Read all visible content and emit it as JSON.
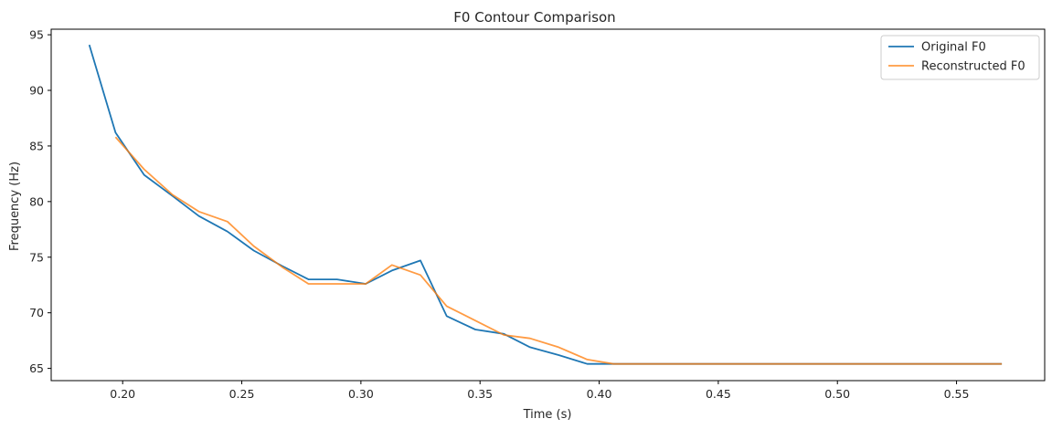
{
  "chart_data": {
    "type": "line",
    "title": "F0 Contour Comparison",
    "xlabel": "Time (s)",
    "ylabel": "Frequency (Hz)",
    "xlim": [
      0.17,
      0.587
    ],
    "ylim": [
      63.9,
      95.5
    ],
    "xticks": [
      0.2,
      0.25,
      0.3,
      0.35,
      0.4,
      0.45,
      0.5,
      0.55
    ],
    "xtick_labels": [
      "0.20",
      "0.25",
      "0.30",
      "0.35",
      "0.40",
      "0.45",
      "0.50",
      "0.55"
    ],
    "yticks": [
      65,
      70,
      75,
      80,
      85,
      90,
      95
    ],
    "ytick_labels": [
      "65",
      "70",
      "75",
      "80",
      "85",
      "90",
      "95"
    ],
    "grid": false,
    "legend_position": "top-right",
    "series": [
      {
        "name": "Original F0",
        "color": "#1f77b4",
        "x": [
          0.186,
          0.197,
          0.209,
          0.221,
          0.232,
          0.244,
          0.255,
          0.267,
          0.278,
          0.29,
          0.302,
          0.313,
          0.325,
          0.336,
          0.348,
          0.36,
          0.371,
          0.383,
          0.395,
          0.406,
          0.418,
          0.43,
          0.441,
          0.453,
          0.464,
          0.476,
          0.488,
          0.499,
          0.511,
          0.522,
          0.534,
          0.546,
          0.557,
          0.569
        ],
        "y": [
          94.1,
          86.2,
          82.4,
          80.5,
          78.7,
          77.3,
          75.6,
          74.2,
          73.0,
          73.0,
          72.6,
          73.8,
          74.7,
          69.7,
          68.5,
          68.1,
          66.9,
          66.2,
          65.4,
          65.4,
          65.4,
          65.4,
          65.4,
          65.4,
          65.4,
          65.4,
          65.4,
          65.4,
          65.4,
          65.4,
          65.4,
          65.4,
          65.4,
          65.4
        ]
      },
      {
        "name": "Reconstructed F0",
        "color": "#ff7f0e",
        "x": [
          0.197,
          0.209,
          0.221,
          0.232,
          0.244,
          0.255,
          0.267,
          0.278,
          0.29,
          0.302,
          0.313,
          0.325,
          0.336,
          0.348,
          0.36,
          0.371,
          0.383,
          0.395,
          0.406,
          0.418,
          0.43,
          0.441,
          0.453,
          0.464,
          0.476,
          0.488,
          0.499,
          0.511,
          0.522,
          0.534,
          0.546,
          0.557,
          0.569
        ],
        "y": [
          85.8,
          82.9,
          80.6,
          79.1,
          78.2,
          76.0,
          74.1,
          72.6,
          72.6,
          72.6,
          74.3,
          73.4,
          70.6,
          69.3,
          68.0,
          67.7,
          66.9,
          65.8,
          65.4,
          65.4,
          65.4,
          65.4,
          65.4,
          65.4,
          65.4,
          65.4,
          65.4,
          65.4,
          65.4,
          65.4,
          65.4,
          65.4,
          65.4
        ]
      }
    ]
  }
}
